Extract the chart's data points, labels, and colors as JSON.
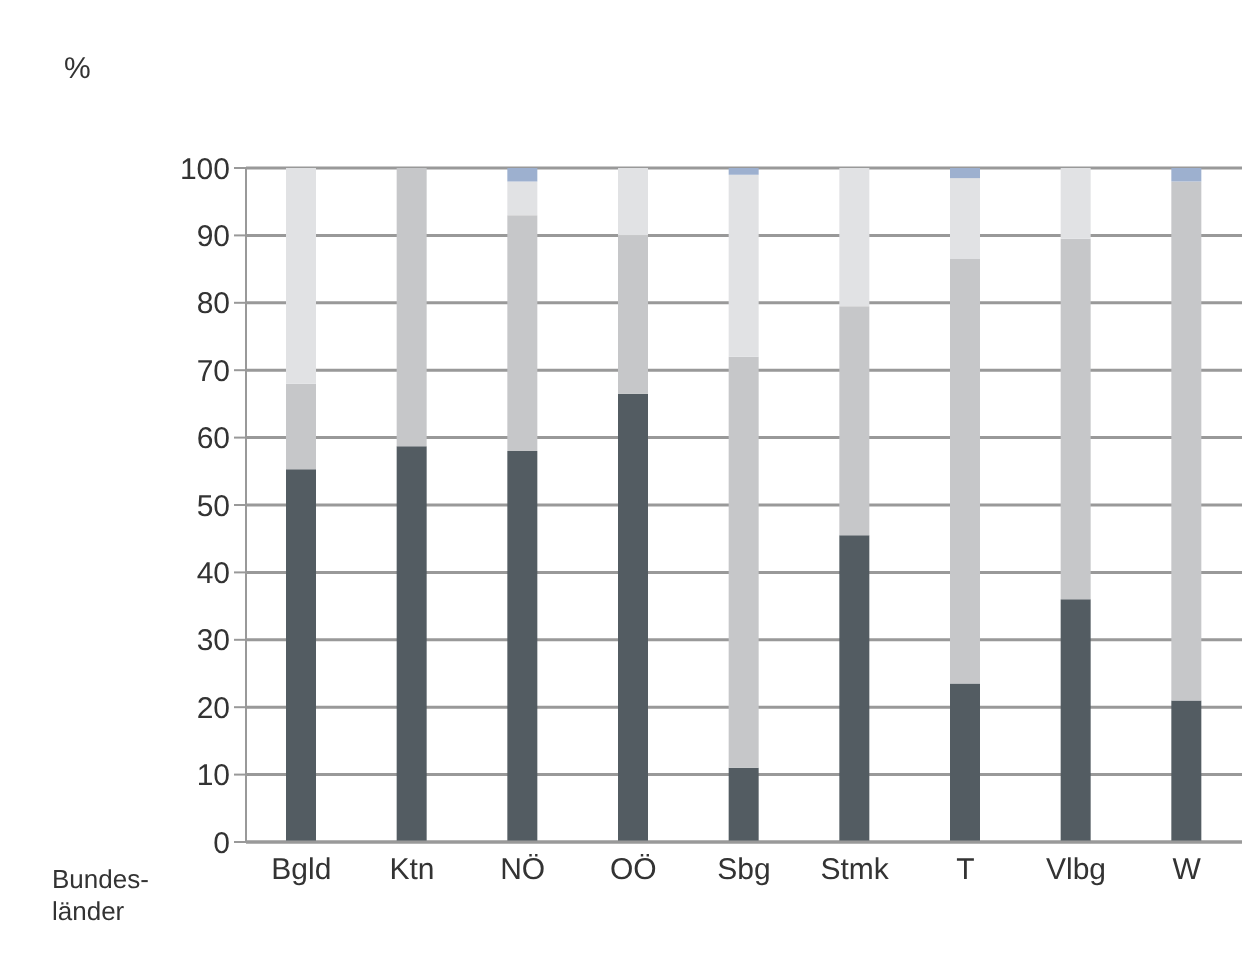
{
  "chart_data": {
    "type": "bar",
    "stacked": true,
    "ylabel": "%",
    "xlabel": "Bundes-\nländer",
    "categories": [
      "Bgld",
      "Ktn",
      "NÖ",
      "OÖ",
      "Sbg",
      "Stmk",
      "T",
      "Vlbg",
      "W"
    ],
    "series": [
      {
        "color": "#535c62",
        "values": [
          55.3,
          58.7,
          58,
          66.5,
          11,
          45.5,
          23.5,
          36,
          21
        ]
      },
      {
        "color": "#c6c7c9",
        "values": [
          12.7,
          41.3,
          35,
          23.5,
          61,
          34,
          63,
          53.5,
          77
        ]
      },
      {
        "color": "#e1e2e4",
        "values": [
          32,
          0,
          5,
          10,
          27,
          20.5,
          12,
          10.5,
          0
        ]
      },
      {
        "color": "#9db0cf",
        "values": [
          0,
          0,
          2,
          0,
          1,
          0,
          1.5,
          0,
          2
        ]
      }
    ],
    "ylim": [
      0,
      100
    ],
    "yticks": [
      0,
      10,
      20,
      30,
      40,
      50,
      60,
      70,
      80,
      90,
      100
    ],
    "grid": "y"
  }
}
